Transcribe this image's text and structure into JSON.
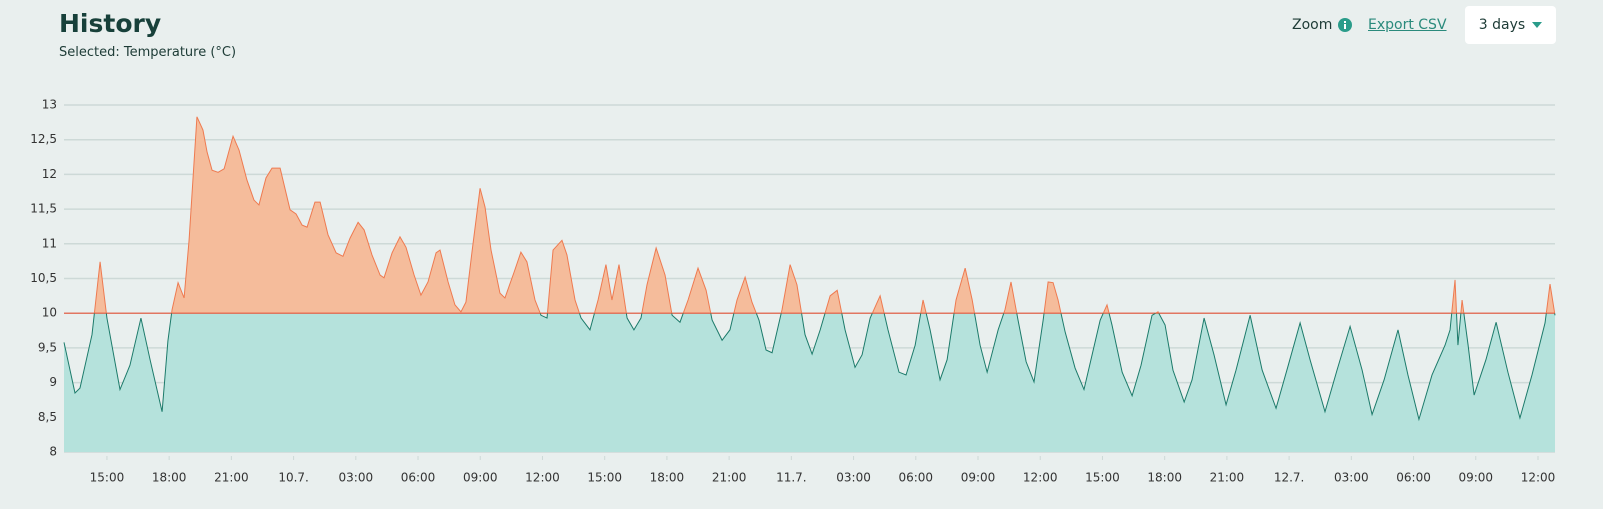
{
  "header": {
    "title": "History",
    "subtitle": "Selected: Temperature (°C)",
    "zoom": "Zoom",
    "export": "Export CSV",
    "range": "3 days"
  },
  "chart_data": {
    "type": "threshold-area",
    "x": [
      12.93,
      13.46,
      13.7,
      14.28,
      14.67,
      15.0,
      15.63,
      16.11,
      16.64,
      17.08,
      17.66,
      17.94,
      18.14,
      18.43,
      18.72,
      18.96,
      19.34,
      19.63,
      19.83,
      20.07,
      20.36,
      20.65,
      21.08,
      21.37,
      21.75,
      22.09,
      22.33,
      22.67,
      22.96,
      23.35,
      23.83,
      24.12,
      24.41,
      24.65,
      25.03,
      25.28,
      25.66,
      26.05,
      26.38,
      26.72,
      27.11,
      27.4,
      27.78,
      28.17,
      28.36,
      28.75,
      29.13,
      29.42,
      29.81,
      30.14,
      30.48,
      30.87,
      31.06,
      31.45,
      31.78,
      32.07,
      32.31,
      32.6,
      32.99,
      33.23,
      33.52,
      33.95,
      34.19,
      34.63,
      34.96,
      35.25,
      35.64,
      35.93,
      36.22,
      36.51,
      36.94,
      37.18,
      37.57,
      37.86,
      38.29,
      38.68,
      39.06,
      39.35,
      39.69,
      40.08,
      40.41,
      40.75,
      41.04,
      41.48,
      41.91,
      42.25,
      42.63,
      43.02,
      43.5,
      43.89,
      44.18,
      44.66,
      45.04,
      45.38,
      45.77,
      46.1,
      46.44,
      46.78,
      47.07,
      47.55,
      47.94,
      48.27,
      48.66,
      49.0,
      49.39,
      49.87,
      50.21,
      50.59,
      51.07,
      51.41,
      51.8,
      52.28,
      52.66,
      53.19,
      53.53,
      53.97,
      54.35,
      54.69,
      55.17,
      55.51,
      55.94,
      56.38,
      56.72,
      57.1,
      57.44,
      57.97,
      58.3,
      58.59,
      58.93,
      59.32,
      59.7,
      60.14,
      60.38,
      60.62,
      60.86,
      61.2,
      61.68,
      62.11,
      62.5,
      62.89,
      63.22,
      63.46,
      63.95,
      64.43,
      64.86,
      65.39,
      65.68,
      66.02,
      66.4,
      66.94,
      67.32,
      67.9,
      68.38,
      68.96,
      69.44,
      70.12,
      70.7,
      71.37,
      71.95,
      72.53,
      73.01,
      73.73,
      74.31,
      74.94,
      75.52,
      76.0,
      76.58,
      77.25,
      77.73,
      78.26,
      78.89,
      79.52,
      79.76,
      80.0,
      80.14,
      80.34,
      80.63,
      80.92,
      81.49,
      81.98,
      82.55,
      83.13,
      83.71,
      84.34,
      84.58,
      84.82
    ],
    "values": [
      9.58,
      8.85,
      8.92,
      9.69,
      10.74,
      9.93,
      8.9,
      9.25,
      9.93,
      9.33,
      8.58,
      9.6,
      10.05,
      10.44,
      10.22,
      11.05,
      12.83,
      12.64,
      12.32,
      12.06,
      12.03,
      12.08,
      12.55,
      12.35,
      11.92,
      11.63,
      11.56,
      11.95,
      12.09,
      12.09,
      11.49,
      11.43,
      11.27,
      11.24,
      11.6,
      11.6,
      11.13,
      10.87,
      10.82,
      11.08,
      11.31,
      11.2,
      10.84,
      10.55,
      10.51,
      10.87,
      11.1,
      10.95,
      10.55,
      10.26,
      10.45,
      10.87,
      10.91,
      10.45,
      10.12,
      10.02,
      10.16,
      10.88,
      11.8,
      11.53,
      10.91,
      10.29,
      10.22,
      10.59,
      10.88,
      10.74,
      10.19,
      9.97,
      9.93,
      10.91,
      11.05,
      10.84,
      10.19,
      9.93,
      9.76,
      10.19,
      10.7,
      10.19,
      10.7,
      9.93,
      9.76,
      9.93,
      10.41,
      10.94,
      10.55,
      9.97,
      9.87,
      10.19,
      10.65,
      10.33,
      9.9,
      9.61,
      9.76,
      10.19,
      10.52,
      10.16,
      9.9,
      9.47,
      9.43,
      10.05,
      10.7,
      10.41,
      9.69,
      9.41,
      9.76,
      10.25,
      10.33,
      9.76,
      9.22,
      9.4,
      9.93,
      10.25,
      9.76,
      9.15,
      9.11,
      9.54,
      10.19,
      9.76,
      9.04,
      9.33,
      10.19,
      10.65,
      10.19,
      9.54,
      9.15,
      9.76,
      10.05,
      10.45,
      9.9,
      9.3,
      9.01,
      9.9,
      10.45,
      10.44,
      10.19,
      9.73,
      9.21,
      8.9,
      9.4,
      9.9,
      10.12,
      9.83,
      9.15,
      8.81,
      9.25,
      9.97,
      10.02,
      9.83,
      9.18,
      8.72,
      9.04,
      9.93,
      9.4,
      8.68,
      9.18,
      9.97,
      9.18,
      8.63,
      9.24,
      9.86,
      9.33,
      8.58,
      9.18,
      9.81,
      9.18,
      8.54,
      9.04,
      9.76,
      9.11,
      8.47,
      9.11,
      9.54,
      9.76,
      10.48,
      9.54,
      10.19,
      9.54,
      8.82,
      9.33,
      9.87,
      9.15,
      8.49,
      9.11,
      9.86,
      10.42,
      9.97
    ],
    "threshold": 10,
    "colors": {
      "below": "#b5e2dc",
      "below_line": "#1c7a6a",
      "above": "#f5bc9b",
      "above_line": "#ee7a50",
      "threshold": "#e8553a"
    },
    "xlim": [
      12.93,
      84.82
    ],
    "xticks": [
      {
        "value": 15,
        "label": "15:00"
      },
      {
        "value": 18,
        "label": "18:00"
      },
      {
        "value": 21,
        "label": "21:00"
      },
      {
        "value": 24,
        "label": "10.7."
      },
      {
        "value": 27,
        "label": "03:00"
      },
      {
        "value": 30,
        "label": "06:00"
      },
      {
        "value": 33,
        "label": "09:00"
      },
      {
        "value": 36,
        "label": "12:00"
      },
      {
        "value": 39,
        "label": "15:00"
      },
      {
        "value": 42,
        "label": "18:00"
      },
      {
        "value": 45,
        "label": "21:00"
      },
      {
        "value": 48,
        "label": "11.7."
      },
      {
        "value": 51,
        "label": "03:00"
      },
      {
        "value": 54,
        "label": "06:00"
      },
      {
        "value": 57,
        "label": "09:00"
      },
      {
        "value": 60,
        "label": "12:00"
      },
      {
        "value": 63,
        "label": "15:00"
      },
      {
        "value": 66,
        "label": "18:00"
      },
      {
        "value": 69,
        "label": "21:00"
      },
      {
        "value": 72,
        "label": "12.7."
      },
      {
        "value": 75,
        "label": "03:00"
      },
      {
        "value": 78,
        "label": "06:00"
      },
      {
        "value": 81,
        "label": "09:00"
      },
      {
        "value": 84,
        "label": "12:00"
      }
    ],
    "ylim": [
      8,
      13
    ],
    "yticks": [
      8,
      {
        "value": 8.5,
        "label": "8,5"
      },
      9,
      {
        "value": 9.5,
        "label": "9,5"
      },
      10,
      {
        "value": 10.5,
        "label": "10,5"
      },
      11,
      {
        "value": 11.5,
        "label": "11,5"
      },
      12,
      {
        "value": 12.5,
        "label": "12,5"
      },
      13
    ],
    "grid": true
  }
}
